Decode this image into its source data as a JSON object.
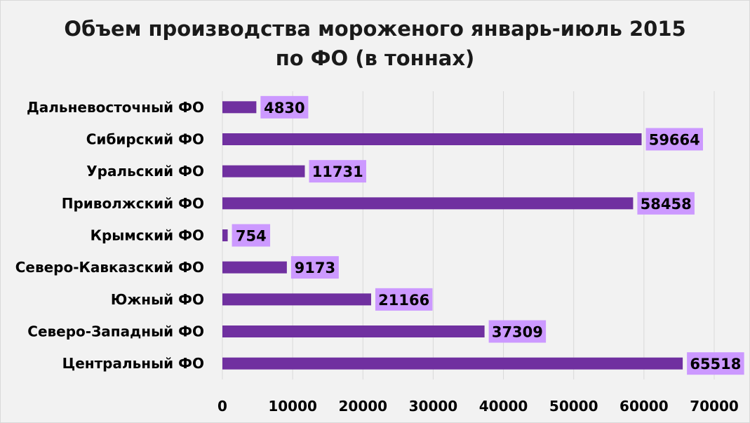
{
  "chart_data": {
    "type": "bar",
    "orientation": "horizontal",
    "title_line1": "Объем производства мороженого январь-июль 2015",
    "title_line2": "по ФО (в тоннах)",
    "categories": [
      "Дальневосточный ФО",
      "Сибирский ФО",
      "Уральский ФО",
      "Приволжский ФО",
      "Крымский ФО",
      "Северо-Кавказский ФО",
      "Южный ФО",
      "Северо-Западный ФО",
      "Центральный ФО"
    ],
    "values": [
      4830,
      59664,
      11731,
      58458,
      754,
      9173,
      21166,
      37309,
      65518
    ],
    "xlim": [
      0,
      70000
    ],
    "xticks": [
      0,
      10000,
      20000,
      30000,
      40000,
      50000,
      60000,
      70000
    ],
    "grid": true,
    "data_labels": true,
    "legend": "none"
  },
  "colors": {
    "bar": "#7030a0",
    "label_box": "#cc99ff",
    "gridline": "#d9d9d9",
    "background": "#f2f2f2"
  }
}
